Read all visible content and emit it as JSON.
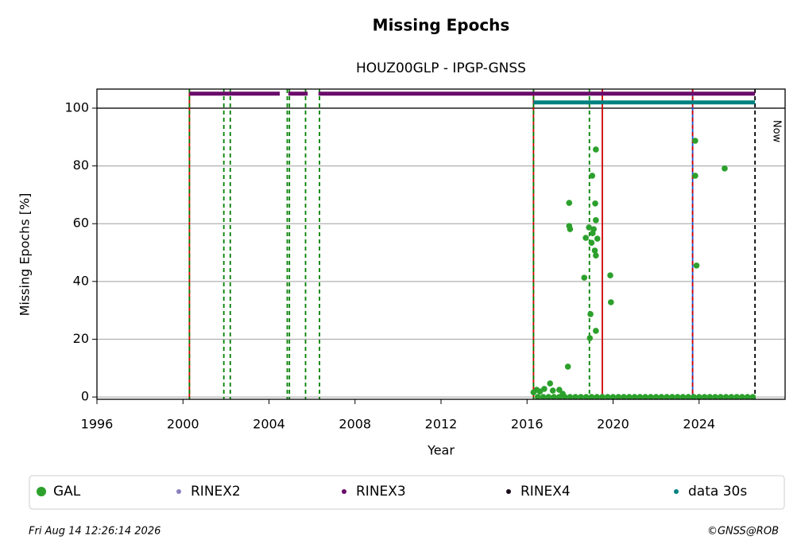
{
  "chart_data": {
    "type": "scatter",
    "title": "Missing Epochs",
    "subtitle": "HOUZ00GLP - IPGP-GNSS",
    "x_label": "Year",
    "y_label": "Missing Epochs [%]",
    "xlim": [
      1996,
      2028
    ],
    "ylim": [
      -0.8,
      106.6
    ],
    "xticks": [
      1996,
      2000,
      2004,
      2008,
      2012,
      2016,
      2020,
      2024
    ],
    "yticks": [
      0,
      20,
      40,
      60,
      80,
      100
    ],
    "grid": true,
    "hline": 100,
    "annotation": "Now",
    "footer_left": "Fri Aug 14 12:26:14 2026",
    "footer_right": "©GNSS@ROB",
    "vlines": [
      {
        "x": 2000.3,
        "color": "#cc0000",
        "dash": false
      },
      {
        "x": 2000.3,
        "color": "#008000",
        "dash": true
      },
      {
        "x": 2001.9,
        "color": "#008000",
        "dash": true
      },
      {
        "x": 2002.2,
        "color": "#008000",
        "dash": true
      },
      {
        "x": 2004.85,
        "color": "#008000",
        "dash": true
      },
      {
        "x": 2004.95,
        "color": "#008000",
        "dash": true
      },
      {
        "x": 2005.7,
        "color": "#008000",
        "dash": true
      },
      {
        "x": 2006.35,
        "color": "#008000",
        "dash": true
      },
      {
        "x": 2016.3,
        "color": "#cc0000",
        "dash": false
      },
      {
        "x": 2016.3,
        "color": "#008000",
        "dash": true
      },
      {
        "x": 2018.9,
        "color": "#008000",
        "dash": true
      },
      {
        "x": 2019.5,
        "color": "#cc0000",
        "dash": false
      },
      {
        "x": 2023.7,
        "color": "#1f4fd0",
        "dash": false
      },
      {
        "x": 2023.7,
        "color": "#cc0000",
        "dash": true
      },
      {
        "x": 2026.6,
        "color": "#000000",
        "dash": true
      }
    ],
    "series": [
      {
        "name": "GAL",
        "color": "#2ca02c",
        "kind": "points",
        "x": [
          2016.3,
          2016.45,
          2016.6,
          2016.8,
          2017.07,
          2017.2,
          2017.5,
          2017.66,
          2017.9,
          2017.96,
          2017.96,
          2018.0,
          2018.66,
          2018.73,
          2018.88,
          2018.95,
          2018.92,
          2019.03,
          2019.2,
          2019.17,
          2019.2,
          2019.1,
          2019.0,
          2019.15,
          2019.2,
          2019.2,
          2019.05,
          2019.27,
          2019.87,
          2019.9,
          2023.82,
          2023.82,
          2023.88,
          2025.19,
          2016.5,
          2016.75,
          2017,
          2017.25,
          2017.5,
          2017.75,
          2018,
          2018.25,
          2018.5,
          2018.75,
          2019,
          2019.25,
          2019.5,
          2019.75,
          2020,
          2020.25,
          2020.5,
          2020.75,
          2021,
          2021.25,
          2021.5,
          2021.75,
          2022,
          2022.25,
          2022.5,
          2022.75,
          2023,
          2023.25,
          2023.5,
          2023.75,
          2024,
          2024.25,
          2024.5,
          2024.75,
          2025,
          2025.25,
          2025.5,
          2025.75,
          2026,
          2026.25,
          2026.5
        ],
        "values": [
          1.6,
          2.5,
          1.9,
          2.8,
          4.7,
          2.2,
          2.5,
          1.1,
          10.5,
          67.2,
          59.2,
          58.1,
          41.3,
          55.1,
          58.7,
          28.7,
          20.4,
          76.6,
          85.7,
          67,
          61.2,
          58.1,
          53.4,
          50.7,
          49,
          22.9,
          56.7,
          54.8,
          42.1,
          32.8,
          88.7,
          76.6,
          45.5,
          79.1,
          0,
          0,
          0,
          0,
          0,
          0,
          0,
          0,
          0,
          0,
          0,
          0,
          0,
          0,
          0,
          0,
          0,
          0,
          0,
          0,
          0,
          0,
          0,
          0,
          0,
          0,
          0,
          0,
          0,
          0,
          0,
          0,
          0,
          0,
          0,
          0,
          0,
          0,
          0,
          0,
          0
        ]
      },
      {
        "name": "RINEX2",
        "color": "#8c7fbf",
        "kind": "line",
        "x": [],
        "values": []
      },
      {
        "name": "RINEX3",
        "color": "#6a0a6a",
        "kind": "line",
        "x": [
          2000.3,
          2004.5,
          null,
          2004.9,
          2005.8,
          null,
          2006.3,
          2026.6
        ],
        "values": [
          105,
          105,
          null,
          105,
          105,
          null,
          105,
          105
        ]
      },
      {
        "name": "RINEX4",
        "color": "#1a0a1a",
        "kind": "line",
        "x": [],
        "values": []
      },
      {
        "name": "data 30s",
        "color": "#008080",
        "kind": "line",
        "x": [
          2016.3,
          2026.6
        ],
        "values": [
          102,
          102
        ]
      }
    ]
  }
}
